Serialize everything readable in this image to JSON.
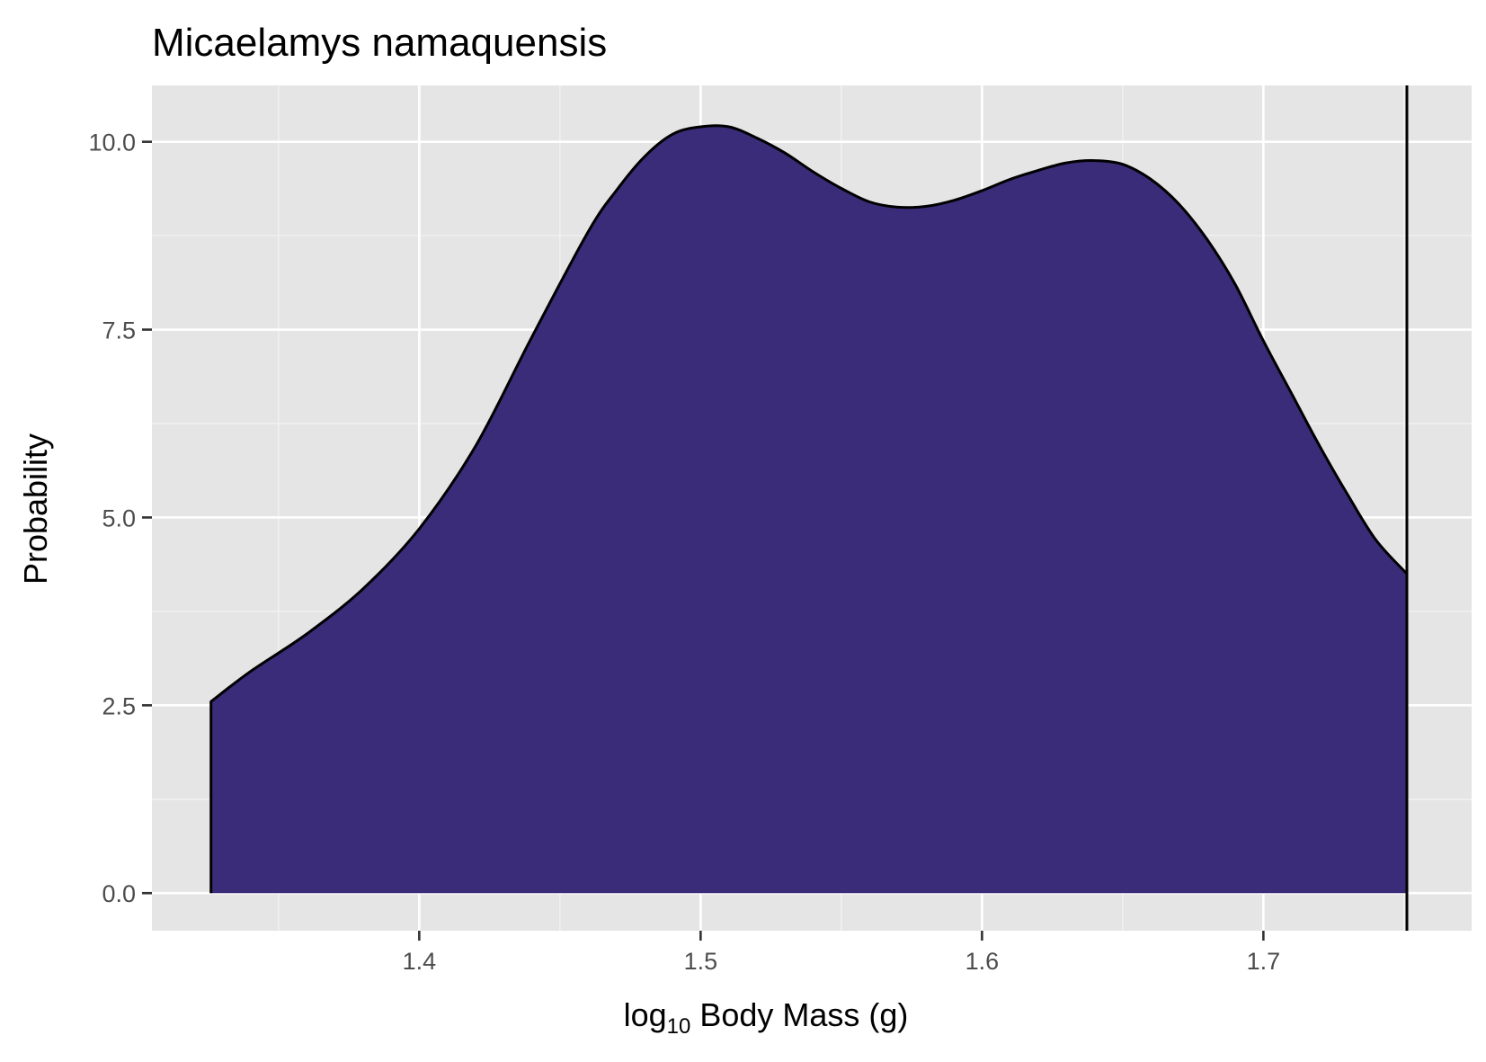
{
  "chart_data": {
    "type": "area",
    "title": "Micaelamys namaquensis",
    "xlabel": {
      "prefix": "log",
      "subscript": "10",
      "suffix": " Body Mass (g)"
    },
    "ylabel": "Probability",
    "xlim": [
      1.305,
      1.774
    ],
    "ylim": [
      -0.5,
      10.75
    ],
    "x_ticks": [
      1.4,
      1.5,
      1.6,
      1.7
    ],
    "x_tick_labels": [
      "1.4",
      "1.5",
      "1.6",
      "1.7"
    ],
    "y_ticks": [
      0,
      2.5,
      5,
      7.5,
      10
    ],
    "y_tick_labels": [
      "0.0",
      "2.5",
      "5.0",
      "7.5",
      "10.0"
    ],
    "grid": true,
    "fill_color": "#3a2c78",
    "line_color": "#000000",
    "panel_color": "#e5e5e5",
    "vline_x": 1.751,
    "series": [
      {
        "x": [
          1.326,
          1.34,
          1.36,
          1.38,
          1.4,
          1.42,
          1.44,
          1.46,
          1.47,
          1.48,
          1.49,
          1.5,
          1.51,
          1.52,
          1.53,
          1.54,
          1.55,
          1.56,
          1.57,
          1.58,
          1.59,
          1.6,
          1.61,
          1.62,
          1.63,
          1.64,
          1.65,
          1.66,
          1.67,
          1.68,
          1.69,
          1.7,
          1.71,
          1.72,
          1.73,
          1.74,
          1.751
        ],
        "y": [
          2.55,
          2.95,
          3.45,
          4.05,
          4.85,
          5.95,
          7.4,
          8.8,
          9.35,
          9.8,
          10.1,
          10.2,
          10.2,
          10.05,
          9.85,
          9.6,
          9.38,
          9.2,
          9.13,
          9.14,
          9.22,
          9.35,
          9.5,
          9.62,
          9.72,
          9.75,
          9.7,
          9.5,
          9.17,
          8.7,
          8.1,
          7.35,
          6.65,
          5.95,
          5.3,
          4.7,
          4.25
        ]
      }
    ]
  }
}
